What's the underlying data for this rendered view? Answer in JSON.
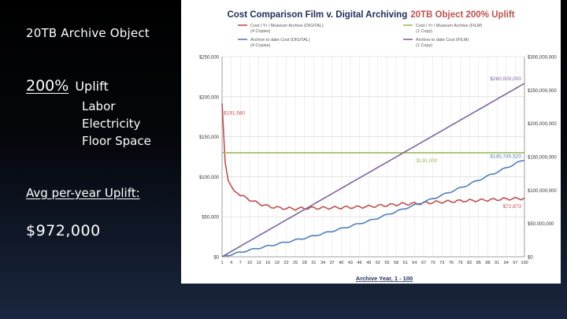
{
  "slide": {
    "title": "20TB Archive Object",
    "uplift_pct": "200%",
    "uplift_label": "Uplift",
    "bullets": [
      "Labor",
      "Electricity",
      "Floor Space"
    ],
    "avg_label": "Avg per-year Uplift:",
    "avg_value": "$972,000"
  },
  "colors": {
    "film_annual": "#c0504d",
    "digital_annual": "#9bbb59",
    "digital_cumulative": "#4f81bd",
    "film_cumulative": "#8064a2"
  },
  "chart_data": {
    "type": "line",
    "title": "Cost Comparison Film v. Digital Archiving",
    "title_highlight": "20TB Object 200% Uplift",
    "xlabel": "Archive Year, 1 - 100",
    "ylabel_left": "",
    "ylabel_right": "",
    "x_ticks": [
      "1",
      "4",
      "7",
      "10",
      "13",
      "16",
      "19",
      "22",
      "25",
      "28",
      "31",
      "34",
      "37",
      "40",
      "43",
      "46",
      "49",
      "52",
      "55",
      "58",
      "61",
      "64",
      "67",
      "70",
      "73",
      "76",
      "79",
      "82",
      "85",
      "88",
      "91",
      "94",
      "97",
      "100"
    ],
    "y_left_ticks": [
      "$0",
      "$50,000",
      "$100,000",
      "$150,000",
      "$200,000",
      "$250,000"
    ],
    "y_left_range": [
      0,
      250000
    ],
    "y_right_ticks": [
      "$0",
      "$50,000,000",
      "$100,000,000",
      "$150,000,000",
      "$200,000,000",
      "$250,000,000",
      "$300,000,000"
    ],
    "y_right_range": [
      0,
      300000000
    ],
    "grid": true,
    "legend_position": "top",
    "series": [
      {
        "name": "Cost / Yr / Museum Archive (DIGITAL) (4 Copies)",
        "axis": "left",
        "color_key": "film_annual",
        "points": [
          [
            1,
            191580
          ],
          [
            2,
            118000
          ],
          [
            3,
            95000
          ],
          [
            5,
            82000
          ],
          [
            8,
            75000
          ],
          [
            12,
            68000
          ],
          [
            16,
            63000
          ],
          [
            20,
            61000
          ],
          [
            25,
            60000
          ],
          [
            30,
            61000
          ],
          [
            35,
            61000
          ],
          [
            40,
            61500
          ],
          [
            45,
            62000
          ],
          [
            50,
            63000
          ],
          [
            55,
            64500
          ],
          [
            60,
            66000
          ],
          [
            65,
            66500
          ],
          [
            70,
            68000
          ],
          [
            75,
            69000
          ],
          [
            80,
            70000
          ],
          [
            85,
            70500
          ],
          [
            90,
            71500
          ],
          [
            95,
            72500
          ],
          [
            100,
            72873
          ]
        ]
      },
      {
        "name": "Cost / Yr / Museum Archive (FILM) (1 Copy)",
        "axis": "left",
        "color_key": "digital_annual",
        "points": [
          [
            1,
            130000
          ],
          [
            100,
            130000
          ]
        ]
      },
      {
        "name": "Archive to date Cost (DIGITAL) (4 Copies)",
        "axis": "right",
        "color_key": "digital_cumulative",
        "points": [
          [
            1,
            200000
          ],
          [
            10,
            10000000
          ],
          [
            20,
            20000000
          ],
          [
            30,
            30000000
          ],
          [
            40,
            42000000
          ],
          [
            50,
            55000000
          ],
          [
            60,
            71000000
          ],
          [
            70,
            87000000
          ],
          [
            80,
            105000000
          ],
          [
            90,
            125000000
          ],
          [
            100,
            145745520
          ]
        ]
      },
      {
        "name": "Archive to date Cost (FILM) (1 Copy)",
        "axis": "right",
        "color_key": "film_cumulative",
        "points": [
          [
            1,
            130000
          ],
          [
            100,
            260000000
          ]
        ]
      }
    ],
    "annotations": [
      {
        "text": "$191,580",
        "x": 1,
        "y": 191580,
        "axis": "left",
        "color_key": "film_annual"
      },
      {
        "text": "$260,000,000",
        "x": 100,
        "y": 260000000,
        "axis": "right",
        "color_key": "film_cumulative"
      },
      {
        "text": "$130,000",
        "x": 68,
        "y": 130000,
        "axis": "left",
        "color_key": "digital_annual"
      },
      {
        "text": "$145,745,520",
        "x": 100,
        "y": 145745520,
        "axis": "right",
        "color_key": "digital_cumulative"
      },
      {
        "text": "$72,873",
        "x": 100,
        "y": 72873,
        "axis": "left",
        "color_key": "film_annual"
      }
    ]
  }
}
